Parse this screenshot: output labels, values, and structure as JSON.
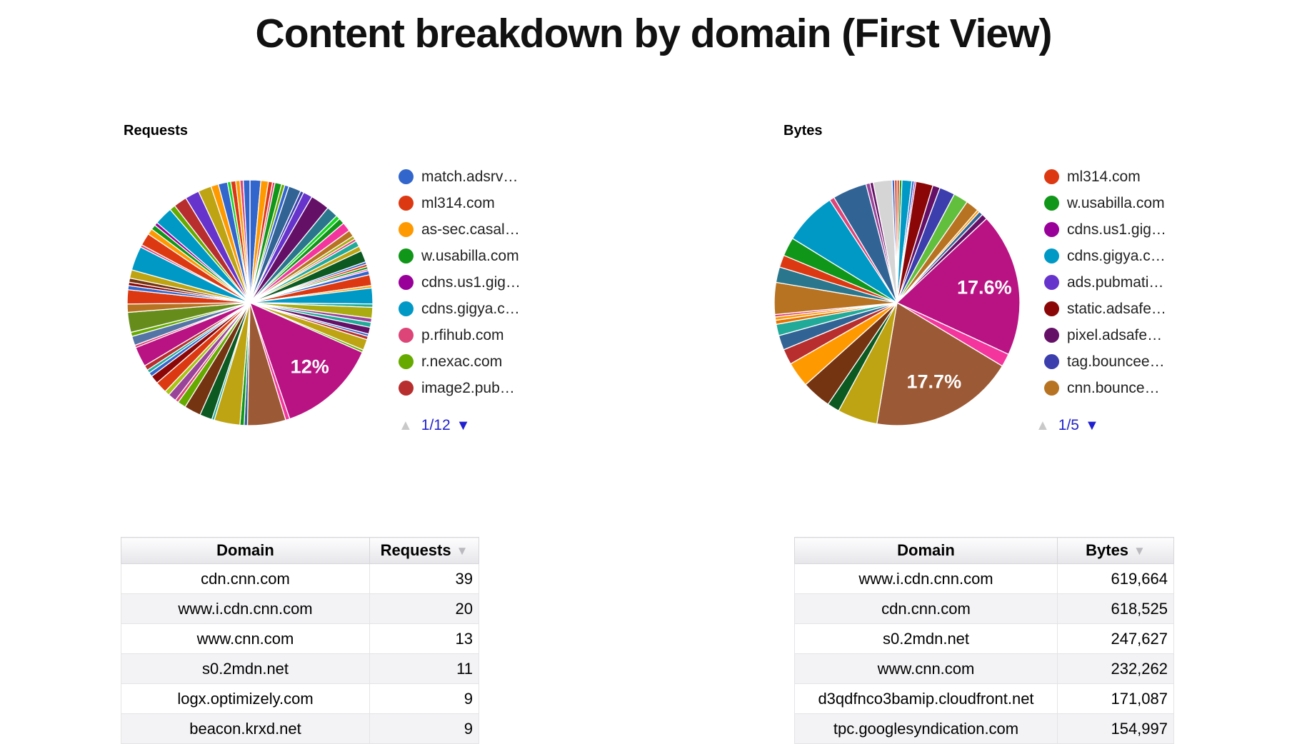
{
  "title": "Content breakdown by domain (First View)",
  "requests_section": {
    "heading": "Requests",
    "legend": [
      {
        "label": "match.adsrv…",
        "color": "#3366cc"
      },
      {
        "label": "ml314.com",
        "color": "#dc3912"
      },
      {
        "label": "as-sec.casal…",
        "color": "#ff9900"
      },
      {
        "label": "w.usabilla.com",
        "color": "#109618"
      },
      {
        "label": "cdns.us1.gig…",
        "color": "#990099"
      },
      {
        "label": "cdns.gigya.c…",
        "color": "#0099c6"
      },
      {
        "label": "p.rfihub.com",
        "color": "#dd4477"
      },
      {
        "label": "r.nexac.com",
        "color": "#66aa00"
      },
      {
        "label": "image2.pub…",
        "color": "#b82e2e"
      }
    ],
    "pager": {
      "up_glyph": "▲",
      "label": "1/12",
      "down_glyph": "▼"
    }
  },
  "bytes_section": {
    "heading": "Bytes",
    "legend": [
      {
        "label": "ml314.com",
        "color": "#dc3912"
      },
      {
        "label": "w.usabilla.com",
        "color": "#109618"
      },
      {
        "label": "cdns.us1.gig…",
        "color": "#990099"
      },
      {
        "label": "cdns.gigya.c…",
        "color": "#0099c6"
      },
      {
        "label": "ads.pubmati…",
        "color": "#6633cc"
      },
      {
        "label": "static.adsafe…",
        "color": "#8b0707"
      },
      {
        "label": "pixel.adsafe…",
        "color": "#651067"
      },
      {
        "label": "tag.bouncee…",
        "color": "#3b3eac"
      },
      {
        "label": "cnn.bounce…",
        "color": "#b77322"
      }
    ],
    "pager": {
      "up_glyph": "▲",
      "label": "1/5",
      "down_glyph": "▼"
    }
  },
  "requests_table": {
    "columns": [
      "Domain",
      "Requests"
    ],
    "sort_glyph": "▼",
    "rows": [
      [
        "cdn.cnn.com",
        "39"
      ],
      [
        "www.i.cdn.cnn.com",
        "20"
      ],
      [
        "www.cnn.com",
        "13"
      ],
      [
        "s0.2mdn.net",
        "11"
      ],
      [
        "logx.optimizely.com",
        "9"
      ],
      [
        "beacon.krxd.net",
        "9"
      ]
    ]
  },
  "bytes_table": {
    "columns": [
      "Domain",
      "Bytes"
    ],
    "sort_glyph": "▼",
    "rows": [
      [
        "www.i.cdn.cnn.com",
        "619,664"
      ],
      [
        "cdn.cnn.com",
        "618,525"
      ],
      [
        "s0.2mdn.net",
        "247,627"
      ],
      [
        "www.cnn.com",
        "232,262"
      ],
      [
        "d3qdfnco3bamip.cloudfront.net",
        "171,087"
      ],
      [
        "tpc.googlesyndication.com",
        "154,997"
      ]
    ]
  },
  "chart_data": [
    {
      "type": "pie",
      "title": "Requests",
      "legend_position": "right",
      "legend_page": "1/12",
      "visible_percent_labels": [
        {
          "label": "12%",
          "color": "#b91383"
        }
      ],
      "slices": [
        [
          "#3366cc",
          1.3
        ],
        [
          "#ff9900",
          0.9
        ],
        [
          "#dc3912",
          0.5
        ],
        [
          "#dd4477",
          0.3
        ],
        [
          "#109618",
          0.8
        ],
        [
          "#66aa00",
          0.4
        ],
        [
          "#3366cc",
          0.5
        ],
        [
          "#316395",
          1.5
        ],
        [
          "#3b3eac",
          0.4
        ],
        [
          "#6633cc",
          1.1
        ],
        [
          "#651067",
          2.3
        ],
        [
          "#2a778d",
          1.4
        ],
        [
          "#16d620",
          0.5
        ],
        [
          "#109618",
          0.7
        ],
        [
          "#f4359e",
          1.1
        ],
        [
          "#b77322",
          0.8
        ],
        [
          "#aaaa11",
          0.4
        ],
        [
          "#dd4477",
          0.3
        ],
        [
          "#22aa99",
          0.7
        ],
        [
          "#bea413",
          0.6
        ],
        [
          "#0c5922",
          1.4
        ],
        [
          "#3366cc",
          0.3
        ],
        [
          "#dc3912",
          0.3
        ],
        [
          "#109618",
          0.3
        ],
        [
          "#f4359e",
          0.2
        ],
        [
          "#3366cc",
          0.5
        ],
        [
          "#dc3912",
          1.3
        ],
        [
          "#ff9900",
          0.3
        ],
        [
          "#0099c6",
          1.9
        ],
        [
          "#22aa99",
          0.4
        ],
        [
          "#aaaa11",
          1.3
        ],
        [
          "#994499",
          0.5
        ],
        [
          "#22aa99",
          0.6
        ],
        [
          "#651067",
          0.8
        ],
        [
          "#3366cc",
          0.3
        ],
        [
          "#b82e2e",
          0.4
        ],
        [
          "#bea413",
          1.3
        ],
        [
          "#66aa00",
          0.3
        ],
        [
          "#b91383",
          12,
          "12%"
        ],
        [
          "#f4359e",
          0.5
        ],
        [
          "#9c5935",
          4.6
        ],
        [
          "#316395",
          0.4
        ],
        [
          "#109618",
          0.5
        ],
        [
          "#bea413",
          3.1
        ],
        [
          "#22aa99",
          0.3
        ],
        [
          "#0c5922",
          1.5
        ],
        [
          "#743411",
          2.0
        ],
        [
          "#66aa00",
          1.0
        ],
        [
          "#dd4477",
          0.4
        ],
        [
          "#994499",
          1.0
        ],
        [
          "#a9c413",
          0.6
        ],
        [
          "#dc3912",
          1.4
        ],
        [
          "#8b0707",
          1.0
        ],
        [
          "#3366cc",
          0.5
        ],
        [
          "#22aa99",
          0.4
        ],
        [
          "#b82e2e",
          0.6
        ],
        [
          "#b91383",
          2.4
        ],
        [
          "#dd4477",
          0.3
        ],
        [
          "#5574a6",
          1.1
        ],
        [
          "#66aa00",
          0.5
        ],
        [
          "#668d1c",
          2.4
        ],
        [
          "#b77322",
          1.0
        ],
        [
          "#dc3912",
          1.7
        ],
        [
          "#3366cc",
          0.5
        ],
        [
          "#8b0707",
          0.4
        ],
        [
          "#743411",
          0.5
        ],
        [
          "#bea413",
          1.0
        ],
        [
          "#0099c6",
          2.9
        ],
        [
          "#dd4477",
          0.3
        ],
        [
          "#dc3912",
          1.5
        ],
        [
          "#ff9900",
          0.7
        ],
        [
          "#109618",
          0.6
        ],
        [
          "#990099",
          0.4
        ],
        [
          "#0099c6",
          2.2
        ],
        [
          "#66aa00",
          0.7
        ],
        [
          "#b82e2e",
          1.6
        ],
        [
          "#6633cc",
          1.7
        ],
        [
          "#bea413",
          1.6
        ],
        [
          "#ff9900",
          0.9
        ],
        [
          "#3366cc",
          1.1
        ],
        [
          "#16d620",
          0.4
        ],
        [
          "#dc3912",
          0.6
        ],
        [
          "#ff9900",
          0.5
        ],
        [
          "#dd4477",
          0.4
        ],
        [
          "#3366cc",
          0.8
        ]
      ]
    },
    {
      "type": "pie",
      "title": "Bytes",
      "legend_position": "right",
      "legend_page": "1/5",
      "visible_percent_labels": [
        {
          "label": "17.6%",
          "color": "#b91383"
        },
        {
          "label": "17.7%",
          "color": "#9c5935"
        }
      ],
      "slices": [
        [
          "#dc3912",
          0.3
        ],
        [
          "#109618",
          0.3
        ],
        [
          "#0099c6",
          1.2
        ],
        [
          "#3366cc",
          0.3
        ],
        [
          "#990099",
          0.2
        ],
        [
          "#8b0707",
          2.1
        ],
        [
          "#651067",
          0.9
        ],
        [
          "#3b3eac",
          1.9
        ],
        [
          "#61bf3d",
          1.8
        ],
        [
          "#b77322",
          1.6
        ],
        [
          "#ff9900",
          0.3
        ],
        [
          "#316395",
          0.5
        ],
        [
          "#651067",
          0.7
        ],
        [
          "#b91383",
          17.6,
          "17.6%"
        ],
        [
          "#f4359e",
          1.6
        ],
        [
          "#9c5935",
          17.7,
          "17.7%"
        ],
        [
          "#bea413",
          4.9
        ],
        [
          "#0c5922",
          1.5
        ],
        [
          "#743411",
          3.6
        ],
        [
          "#ff9900",
          3.1
        ],
        [
          "#b82e2e",
          1.9
        ],
        [
          "#316395",
          1.8
        ],
        [
          "#22aa99",
          1.4
        ],
        [
          "#e67300",
          0.5
        ],
        [
          "#ff9900",
          0.4
        ],
        [
          "#dd4477",
          0.3
        ],
        [
          "#b77322",
          3.9
        ],
        [
          "#2a778d",
          1.9
        ],
        [
          "#dc3912",
          1.5
        ],
        [
          "#109618",
          2.3
        ],
        [
          "#0099c6",
          6.5
        ],
        [
          "#dd4477",
          0.6
        ],
        [
          "#316395",
          4.2
        ],
        [
          "#994499",
          0.5
        ],
        [
          "#651067",
          0.4
        ],
        [
          "#d5d5d5",
          2.3
        ],
        [
          "#3366cc",
          0.3
        ],
        [
          "#dc3912",
          0.3
        ]
      ]
    },
    {
      "type": "table",
      "columns": [
        "Domain",
        "Requests"
      ],
      "sorted_by": "Requests",
      "sort_direction": "desc",
      "rows": [
        [
          "cdn.cnn.com",
          39
        ],
        [
          "www.i.cdn.cnn.com",
          20
        ],
        [
          "www.cnn.com",
          13
        ],
        [
          "s0.2mdn.net",
          11
        ],
        [
          "logx.optimizely.com",
          9
        ],
        [
          "beacon.krxd.net",
          9
        ]
      ]
    },
    {
      "type": "table",
      "columns": [
        "Domain",
        "Bytes"
      ],
      "sorted_by": "Bytes",
      "sort_direction": "desc",
      "rows": [
        [
          "www.i.cdn.cnn.com",
          619664
        ],
        [
          "cdn.cnn.com",
          618525
        ],
        [
          "s0.2mdn.net",
          247627
        ],
        [
          "www.cnn.com",
          232262
        ],
        [
          "d3qdfnco3bamip.cloudfront.net",
          171087
        ],
        [
          "tpc.googlesyndication.com",
          154997
        ]
      ]
    }
  ]
}
